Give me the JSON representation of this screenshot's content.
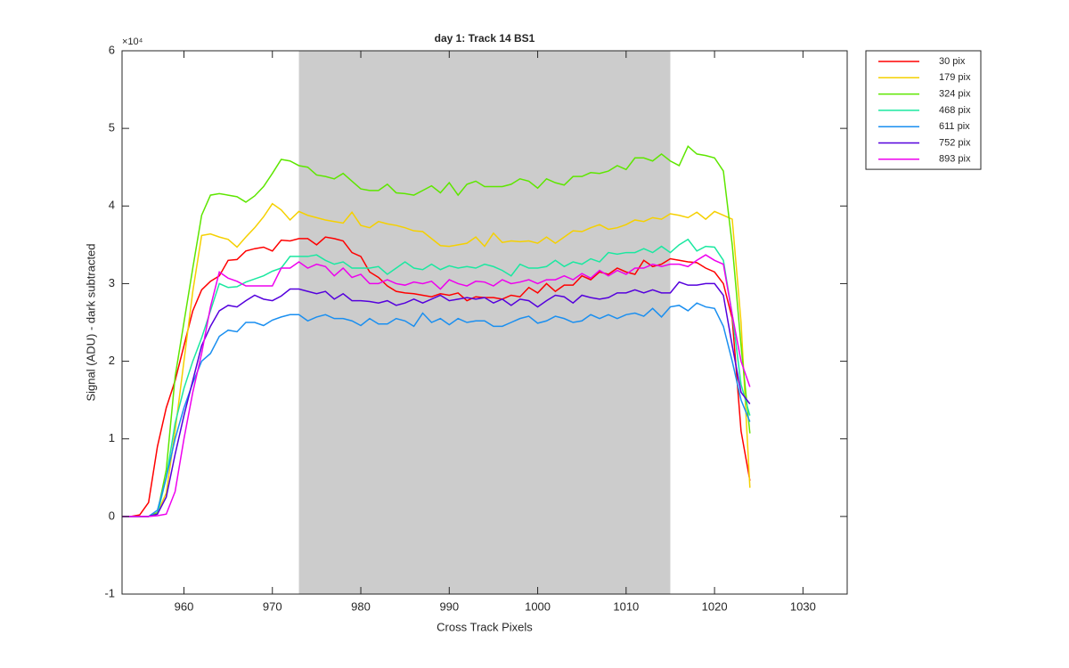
{
  "chart_data": {
    "type": "line",
    "title": "day 1: Track 14  BS1",
    "xlabel": "Cross Track Pixels",
    "ylabel": "Signal (ADU) - dark subtracted",
    "y_exponent": "×10⁴",
    "xlim": [
      953,
      1035
    ],
    "ylim": [
      -1,
      6
    ],
    "xticks": [
      960,
      970,
      980,
      990,
      1000,
      1010,
      1020,
      1030
    ],
    "yticks": [
      -1,
      0,
      1,
      2,
      3,
      4,
      5,
      6
    ],
    "shaded_region": [
      973,
      1015
    ],
    "shaded_color": "#cccccc",
    "legend": "outside-upper-right",
    "x": [
      953,
      954,
      955,
      956,
      957,
      958,
      959,
      960,
      961,
      962,
      963,
      964,
      965,
      966,
      967,
      968,
      969,
      970,
      971,
      972,
      973,
      974,
      975,
      976,
      977,
      978,
      979,
      980,
      981,
      982,
      983,
      984,
      985,
      986,
      987,
      988,
      989,
      990,
      991,
      992,
      993,
      994,
      995,
      996,
      997,
      998,
      999,
      1000,
      1001,
      1002,
      1003,
      1004,
      1005,
      1006,
      1007,
      1008,
      1009,
      1010,
      1011,
      1012,
      1013,
      1014,
      1015,
      1016,
      1017,
      1018,
      1019,
      1020,
      1021,
      1022,
      1023,
      1024
    ],
    "series": [
      {
        "name": "30 pix",
        "color": "#ff0000",
        "values": [
          0,
          0,
          0.02,
          0.18,
          0.9,
          1.4,
          1.75,
          2.2,
          2.65,
          2.92,
          3.03,
          3.1,
          3.3,
          3.31,
          3.42,
          3.45,
          3.47,
          3.42,
          3.56,
          3.55,
          3.58,
          3.58,
          3.5,
          3.6,
          3.58,
          3.55,
          3.4,
          3.35,
          3.15,
          3.08,
          2.97,
          2.9,
          2.88,
          2.87,
          2.85,
          2.83,
          2.87,
          2.85,
          2.88,
          2.78,
          2.83,
          2.82,
          2.82,
          2.8,
          2.85,
          2.83,
          2.95,
          2.88,
          3.0,
          2.9,
          2.98,
          2.98,
          3.1,
          3.05,
          3.15,
          3.12,
          3.2,
          3.15,
          3.12,
          3.3,
          3.22,
          3.25,
          3.32,
          3.3,
          3.28,
          3.27,
          3.2,
          3.15,
          3.0,
          2.55,
          1.1,
          0.46
        ]
      },
      {
        "name": "179 pix",
        "color": "#f5d000",
        "values": [
          0,
          0,
          0,
          0,
          0.05,
          0.3,
          1.1,
          2.0,
          2.9,
          3.62,
          3.64,
          3.6,
          3.57,
          3.47,
          3.6,
          3.72,
          3.86,
          4.03,
          3.95,
          3.82,
          3.93,
          3.88,
          3.85,
          3.82,
          3.8,
          3.78,
          3.92,
          3.75,
          3.72,
          3.8,
          3.77,
          3.75,
          3.72,
          3.68,
          3.67,
          3.58,
          3.49,
          3.48,
          3.5,
          3.52,
          3.6,
          3.48,
          3.65,
          3.53,
          3.55,
          3.54,
          3.55,
          3.52,
          3.6,
          3.52,
          3.6,
          3.68,
          3.67,
          3.72,
          3.76,
          3.7,
          3.72,
          3.76,
          3.82,
          3.8,
          3.85,
          3.83,
          3.9,
          3.88,
          3.85,
          3.92,
          3.83,
          3.93,
          3.88,
          3.83,
          2.5,
          0.37
        ]
      },
      {
        "name": "324 pix",
        "color": "#5ee600",
        "values": [
          0,
          0,
          0,
          0,
          0.05,
          0.6,
          1.8,
          2.5,
          3.2,
          3.88,
          4.14,
          4.16,
          4.14,
          4.12,
          4.05,
          4.13,
          4.25,
          4.42,
          4.6,
          4.58,
          4.52,
          4.5,
          4.4,
          4.38,
          4.35,
          4.42,
          4.32,
          4.22,
          4.2,
          4.2,
          4.28,
          4.17,
          4.16,
          4.14,
          4.2,
          4.26,
          4.17,
          4.3,
          4.14,
          4.28,
          4.32,
          4.25,
          4.25,
          4.25,
          4.28,
          4.35,
          4.32,
          4.23,
          4.35,
          4.3,
          4.27,
          4.38,
          4.38,
          4.43,
          4.42,
          4.45,
          4.52,
          4.47,
          4.62,
          4.62,
          4.58,
          4.67,
          4.58,
          4.52,
          4.77,
          4.67,
          4.65,
          4.62,
          4.45,
          3.5,
          2.2,
          1.07
        ]
      },
      {
        "name": "468 pix",
        "color": "#1ae8a0",
        "values": [
          0,
          0,
          0,
          0,
          0.03,
          0.5,
          1.2,
          1.65,
          2.0,
          2.3,
          2.65,
          3.0,
          2.95,
          2.96,
          3.02,
          3.06,
          3.1,
          3.16,
          3.2,
          3.35,
          3.35,
          3.35,
          3.37,
          3.3,
          3.25,
          3.28,
          3.2,
          3.2,
          3.2,
          3.22,
          3.12,
          3.2,
          3.28,
          3.2,
          3.18,
          3.25,
          3.18,
          3.23,
          3.2,
          3.22,
          3.2,
          3.25,
          3.22,
          3.17,
          3.1,
          3.25,
          3.2,
          3.2,
          3.22,
          3.3,
          3.22,
          3.28,
          3.25,
          3.32,
          3.28,
          3.4,
          3.38,
          3.4,
          3.4,
          3.45,
          3.4,
          3.48,
          3.4,
          3.5,
          3.57,
          3.42,
          3.48,
          3.47,
          3.3,
          2.6,
          1.7,
          1.3
        ]
      },
      {
        "name": "611 pix",
        "color": "#1a8ff0",
        "values": [
          0,
          0,
          0,
          0,
          0.08,
          0.5,
          1.0,
          1.4,
          1.72,
          2.0,
          2.1,
          2.32,
          2.4,
          2.38,
          2.5,
          2.5,
          2.46,
          2.53,
          2.57,
          2.6,
          2.6,
          2.52,
          2.57,
          2.6,
          2.55,
          2.55,
          2.52,
          2.46,
          2.55,
          2.48,
          2.48,
          2.55,
          2.52,
          2.45,
          2.62,
          2.5,
          2.55,
          2.47,
          2.55,
          2.5,
          2.52,
          2.52,
          2.45,
          2.45,
          2.5,
          2.55,
          2.58,
          2.49,
          2.52,
          2.58,
          2.55,
          2.5,
          2.52,
          2.6,
          2.55,
          2.6,
          2.55,
          2.6,
          2.62,
          2.58,
          2.68,
          2.57,
          2.7,
          2.72,
          2.65,
          2.75,
          2.7,
          2.68,
          2.45,
          2.0,
          1.5,
          1.22
        ]
      },
      {
        "name": "752 pix",
        "color": "#5500dd",
        "values": [
          0,
          0,
          0,
          0,
          0.03,
          0.25,
          0.8,
          1.3,
          1.75,
          2.2,
          2.45,
          2.65,
          2.72,
          2.7,
          2.78,
          2.85,
          2.8,
          2.78,
          2.84,
          2.93,
          2.93,
          2.9,
          2.87,
          2.9,
          2.8,
          2.87,
          2.78,
          2.78,
          2.77,
          2.75,
          2.78,
          2.72,
          2.75,
          2.8,
          2.75,
          2.8,
          2.85,
          2.78,
          2.8,
          2.82,
          2.8,
          2.82,
          2.75,
          2.8,
          2.72,
          2.8,
          2.78,
          2.7,
          2.78,
          2.85,
          2.83,
          2.75,
          2.85,
          2.82,
          2.8,
          2.82,
          2.88,
          2.88,
          2.92,
          2.88,
          2.92,
          2.88,
          2.88,
          3.02,
          2.98,
          2.98,
          3.0,
          3.0,
          2.85,
          2.2,
          1.6,
          1.45
        ]
      },
      {
        "name": "893 pix",
        "color": "#ee00ee",
        "values": [
          0,
          0,
          0,
          0,
          0.01,
          0.03,
          0.32,
          1.0,
          1.6,
          2.1,
          2.7,
          3.15,
          3.07,
          3.03,
          2.97,
          2.97,
          2.97,
          2.97,
          3.2,
          3.2,
          3.28,
          3.2,
          3.25,
          3.22,
          3.1,
          3.2,
          3.08,
          3.12,
          3.0,
          3.0,
          3.05,
          3.0,
          2.98,
          3.02,
          3.0,
          3.03,
          2.93,
          3.05,
          3.0,
          2.97,
          3.03,
          3.02,
          2.97,
          3.05,
          3.0,
          3.02,
          3.05,
          3.0,
          3.05,
          3.05,
          3.1,
          3.05,
          3.13,
          3.07,
          3.17,
          3.1,
          3.17,
          3.12,
          3.2,
          3.2,
          3.25,
          3.22,
          3.25,
          3.25,
          3.22,
          3.3,
          3.37,
          3.3,
          3.25,
          2.6,
          2.0,
          1.67
        ]
      }
    ]
  }
}
